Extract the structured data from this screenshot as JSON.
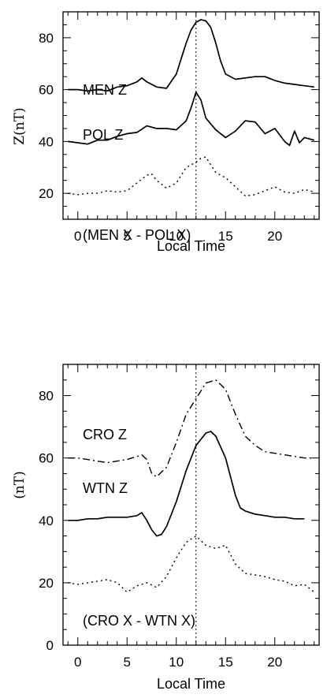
{
  "chart_data": [
    {
      "type": "line",
      "xlabel": "Local Time",
      "ylabel": "Z(nT)",
      "xlim": [
        -1.5,
        24.5
      ],
      "ylim": [
        10,
        90
      ],
      "xticks": [
        0,
        5,
        10,
        15,
        20
      ],
      "yticks": [
        20,
        40,
        60,
        80
      ],
      "vline": 12,
      "series": [
        {
          "name": "MEN Z",
          "style": "solid",
          "x": [
            -1,
            0,
            1,
            2,
            3,
            4,
            5,
            6,
            6.5,
            7,
            8,
            9,
            10,
            10.5,
            11,
            11.5,
            12,
            12.5,
            13,
            13.5,
            14,
            14.5,
            15,
            16,
            17,
            18,
            19,
            20,
            21,
            22,
            23,
            24
          ],
          "y": [
            60,
            60,
            59.5,
            60,
            59.5,
            61,
            61.5,
            63,
            64.5,
            63,
            61,
            60.5,
            66,
            72,
            78,
            83,
            86,
            87,
            86.5,
            84,
            78,
            71,
            66,
            64,
            64.5,
            65,
            65,
            63.5,
            62.5,
            62,
            61.5,
            61
          ]
        },
        {
          "name": "POL Z",
          "style": "solid",
          "x": [
            -1,
            0,
            1,
            2,
            3,
            4,
            5,
            6,
            7,
            8,
            9,
            10,
            11,
            11.5,
            12,
            12.5,
            13,
            14,
            15,
            16,
            17,
            18,
            19,
            20,
            21,
            21.5,
            22,
            22.5,
            23,
            24
          ],
          "y": [
            40,
            39.5,
            39,
            40.5,
            40.5,
            42,
            43,
            43.5,
            46,
            45,
            45,
            44.5,
            48,
            53,
            59,
            56,
            49,
            44.5,
            41.5,
            44,
            48,
            47.5,
            43,
            45,
            40,
            38.5,
            44,
            39.5,
            41.5,
            40.5
          ]
        },
        {
          "name": "(MEN X - POL X)",
          "style": "dotted",
          "x": [
            -1,
            0,
            1,
            2,
            3,
            4,
            5,
            6,
            7,
            7.5,
            8,
            9,
            10,
            11,
            12,
            12.5,
            13,
            14,
            15,
            16,
            17,
            18,
            19,
            20,
            21,
            22,
            23,
            24
          ],
          "y": [
            20,
            19.5,
            20,
            20,
            21,
            20.5,
            21,
            24,
            27,
            27.5,
            25,
            22,
            24,
            30,
            32,
            33.5,
            34,
            28,
            26,
            22.5,
            19,
            19.5,
            21,
            22.5,
            20.5,
            20,
            21.5,
            20.5
          ]
        }
      ]
    },
    {
      "type": "line",
      "xlabel": "Local Time",
      "ylabel": "(nT)",
      "xlim": [
        -1.5,
        24.5
      ],
      "ylim": [
        0,
        90
      ],
      "xticks": [
        0,
        5,
        10,
        15,
        20
      ],
      "yticks": [
        0,
        20,
        40,
        60,
        80
      ],
      "vline": 12,
      "series": [
        {
          "name": "CRO Z",
          "style": "dashdot",
          "x": [
            -1,
            0,
            1,
            2,
            3,
            4,
            5,
            6,
            6.5,
            7,
            7.5,
            8,
            9,
            10,
            11,
            12,
            13,
            14,
            15,
            16,
            17,
            18,
            19,
            20,
            21,
            22,
            23,
            24
          ],
          "y": [
            60,
            60,
            59.5,
            59,
            58.5,
            59,
            59.5,
            60.5,
            61,
            59.5,
            55,
            54,
            57,
            65,
            74,
            79,
            84,
            85,
            82,
            74,
            67,
            64,
            62,
            61.5,
            61,
            60.5,
            60,
            60
          ]
        },
        {
          "name": "WTN Z",
          "style": "solid",
          "x": [
            -1,
            0,
            1,
            2,
            3,
            4,
            5,
            6,
            6.5,
            7,
            7.5,
            8,
            8.5,
            9,
            10,
            11,
            12,
            13,
            13.5,
            14,
            15,
            16,
            16.5,
            17,
            18,
            19,
            20,
            21,
            22,
            23
          ],
          "y": [
            40,
            40,
            40.5,
            40.5,
            41,
            41,
            41,
            41.5,
            42.5,
            40,
            37,
            35,
            35.5,
            38,
            46,
            56,
            64,
            68,
            68.5,
            67,
            60,
            48,
            44,
            43,
            42,
            41.5,
            41,
            41,
            40.5,
            40.5
          ]
        },
        {
          "name": "(CRO X - WTN X)",
          "style": "dotted",
          "x": [
            -1,
            0,
            1,
            2,
            3,
            4,
            5,
            5.5,
            6,
            7,
            8,
            9,
            10,
            11,
            12,
            13,
            14,
            15,
            16,
            17,
            18,
            19,
            20,
            21,
            22,
            23,
            24
          ],
          "y": [
            20,
            19.5,
            20,
            20.5,
            21,
            20,
            17,
            18,
            19,
            20,
            18.5,
            22,
            28,
            33,
            35,
            32,
            31,
            32,
            26,
            23,
            22.5,
            22,
            21,
            20.5,
            19,
            19.5,
            17
          ]
        }
      ]
    }
  ]
}
